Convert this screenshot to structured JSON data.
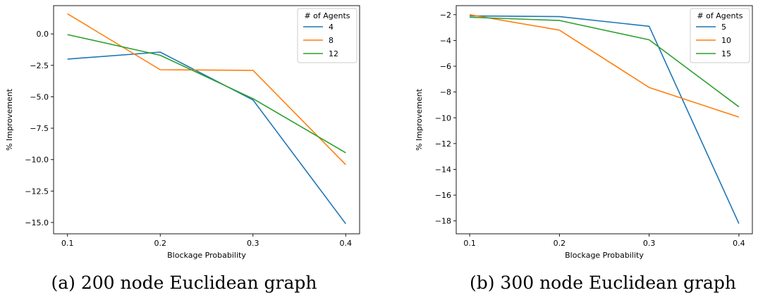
{
  "chart_data": [
    {
      "type": "line",
      "caption": "(a) 200 node Euclidean graph",
      "xlabel": "Blockage Probability",
      "ylabel": "% Improvement",
      "legend_title": "# of Agents",
      "legend_position": "top-right",
      "grid": false,
      "x": [
        0.1,
        0.2,
        0.3,
        0.4
      ],
      "xticks": [
        "0.1",
        "0.2",
        "0.3",
        "0.4"
      ],
      "xlim": [
        0.085,
        0.415
      ],
      "ylim": [
        -15.9,
        2.25
      ],
      "yticks": [
        0.0,
        -2.5,
        -5.0,
        -7.5,
        -10.0,
        -12.5,
        -15.0
      ],
      "ytick_labels": [
        "0.0",
        "−2.5",
        "−5.0",
        "−7.5",
        "−10.0",
        "−12.5",
        "−15.0"
      ],
      "series": [
        {
          "name": "4",
          "color": "#1f77b4",
          "values": [
            -2.0,
            -1.45,
            -5.25,
            -15.1
          ]
        },
        {
          "name": "8",
          "color": "#ff7f0e",
          "values": [
            1.6,
            -2.85,
            -2.9,
            -10.4
          ]
        },
        {
          "name": "12",
          "color": "#2ca02c",
          "values": [
            -0.05,
            -1.7,
            -5.15,
            -9.45
          ]
        }
      ]
    },
    {
      "type": "line",
      "caption": "(b) 300 node Euclidean graph",
      "xlabel": "Blockage Probability",
      "ylabel": "% Improvement",
      "legend_title": "# of Agents",
      "legend_position": "top-right",
      "grid": false,
      "x": [
        0.1,
        0.2,
        0.3,
        0.4
      ],
      "xticks": [
        "0.1",
        "0.2",
        "0.3",
        "0.4"
      ],
      "xlim": [
        0.085,
        0.415
      ],
      "ylim": [
        -19.0,
        -1.3
      ],
      "yticks": [
        -2,
        -4,
        -6,
        -8,
        -10,
        -12,
        -14,
        -16,
        -18
      ],
      "ytick_labels": [
        "−2",
        "−4",
        "−6",
        "−8",
        "−10",
        "−12",
        "−14",
        "−16",
        "−18"
      ],
      "series": [
        {
          "name": "5",
          "color": "#1f77b4",
          "values": [
            -2.1,
            -2.15,
            -2.9,
            -18.2
          ]
        },
        {
          "name": "10",
          "color": "#ff7f0e",
          "values": [
            -2.0,
            -3.2,
            -7.65,
            -9.95
          ]
        },
        {
          "name": "15",
          "color": "#2ca02c",
          "values": [
            -2.2,
            -2.45,
            -3.95,
            -9.15
          ]
        }
      ]
    }
  ]
}
